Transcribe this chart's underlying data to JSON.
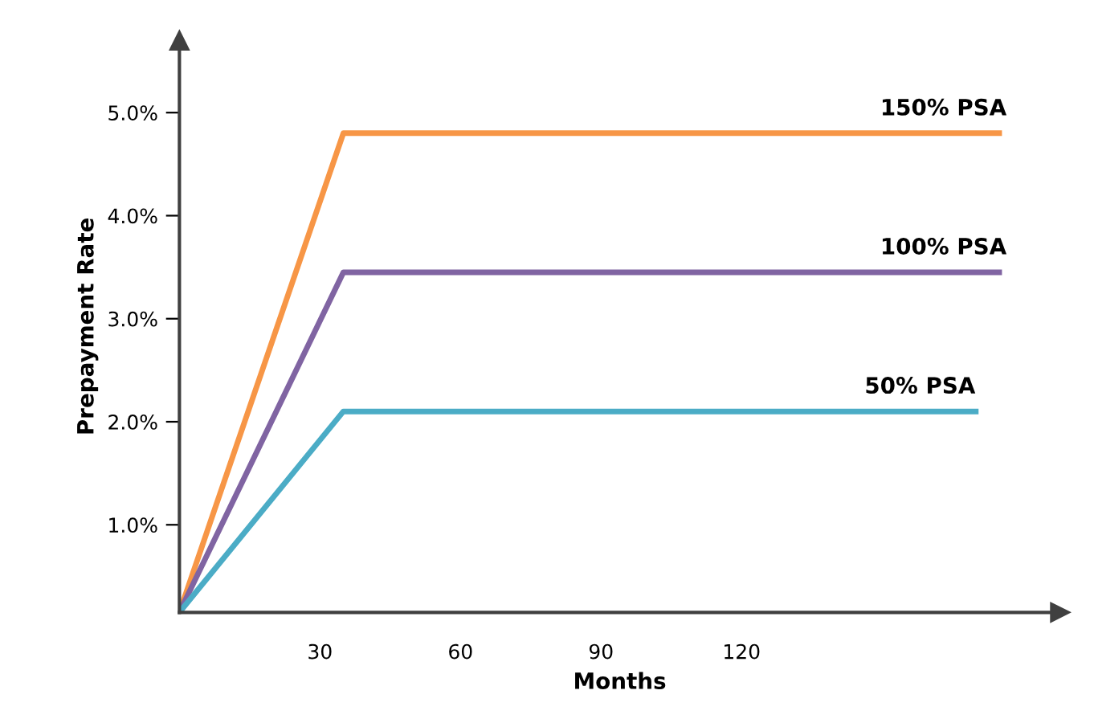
{
  "chart_data": {
    "type": "line",
    "xlabel": "Months",
    "ylabel": "Prepayment Rate",
    "xlim": [
      0,
      188
    ],
    "ylim": [
      0.15,
      5.7
    ],
    "xticks": [
      30,
      60,
      90,
      120
    ],
    "yticks": [
      {
        "value": 1.0,
        "label": "1.0%"
      },
      {
        "value": 2.0,
        "label": "2.0%"
      },
      {
        "value": 3.0,
        "label": "3.0%"
      },
      {
        "value": 4.0,
        "label": "4.0%"
      },
      {
        "value": 5.0,
        "label": "5.0%"
      }
    ],
    "grid": false,
    "legend": false,
    "marker": "none",
    "line_style": "solid",
    "series": [
      {
        "name": "150% PSA",
        "color": "#f79646",
        "x": [
          0,
          35,
          175
        ],
        "values": [
          0.15,
          4.8,
          4.8
        ]
      },
      {
        "name": "100% PSA",
        "color": "#8064a2",
        "x": [
          0,
          35,
          175
        ],
        "values": [
          0.15,
          3.45,
          3.45
        ]
      },
      {
        "name": "50% PSA",
        "color": "#4bacc6",
        "x": [
          0,
          35,
          170
        ],
        "values": [
          0.15,
          2.1,
          2.1
        ]
      }
    ]
  }
}
